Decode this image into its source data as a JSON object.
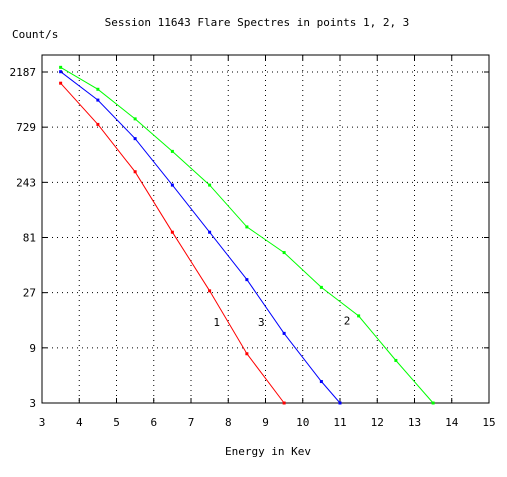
{
  "chart_data": {
    "type": "line",
    "title": "Session  11643   Flare    Spectres in points 1, 2, 3",
    "ylabel": "Count/s",
    "xlabel": "Energy in Kev",
    "x_scale": "linear",
    "y_scale": "log",
    "xlim": [
      3,
      15
    ],
    "ylim": [
      3,
      3300
    ],
    "x_ticks": [
      3,
      4,
      5,
      6,
      7,
      8,
      9,
      10,
      11,
      12,
      13,
      14,
      15
    ],
    "y_ticks": [
      3,
      9,
      27,
      81,
      243,
      729,
      2187
    ],
    "grid": true,
    "series": [
      {
        "name": "1",
        "color": "#ff0000",
        "x": [
          3.5,
          4.5,
          5.5,
          6.5,
          7.5,
          8.5,
          9.5
        ],
        "y": [
          1750,
          770,
          300,
          90,
          28,
          8,
          3
        ]
      },
      {
        "name": "2",
        "color": "#00ff00",
        "x": [
          3.5,
          4.5,
          5.5,
          6.5,
          7.5,
          8.5,
          9.5,
          10.5,
          11.5,
          12.5,
          13.5
        ],
        "y": [
          2400,
          1550,
          860,
          450,
          230,
          100,
          60,
          30,
          17,
          7,
          3
        ]
      },
      {
        "name": "3",
        "color": "#0000ff",
        "x": [
          3.5,
          4.5,
          5.5,
          6.5,
          7.5,
          8.5,
          9.5,
          10.5,
          11.0
        ],
        "y": [
          2200,
          1250,
          580,
          230,
          90,
          35,
          12,
          4.6,
          3
        ]
      }
    ],
    "annotations": [
      {
        "text": "1",
        "x": 7.6,
        "y": 15,
        "color": "#000000"
      },
      {
        "text": "3",
        "x": 8.8,
        "y": 15,
        "color": "#000000"
      },
      {
        "text": "2",
        "x": 11.1,
        "y": 15.5,
        "color": "#000000"
      }
    ]
  }
}
